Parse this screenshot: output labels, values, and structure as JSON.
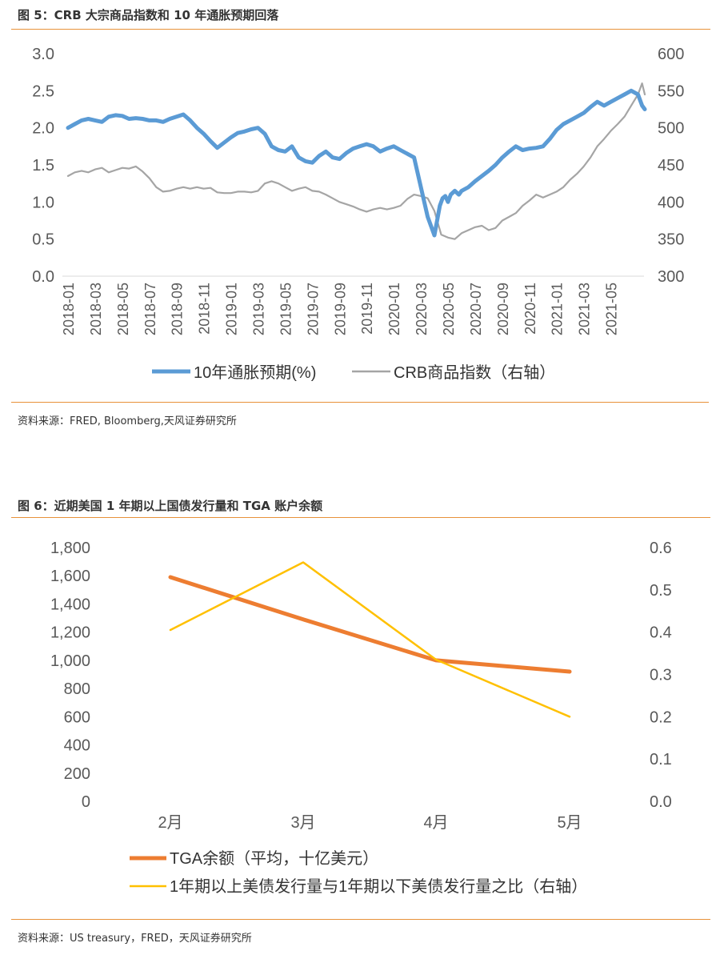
{
  "figure5": {
    "title": "图 5：CRB 大宗商品指数和 10 年通胀预期回落",
    "source": "资料来源：FRED, Bloomberg,天风证券研究所"
  },
  "figure6": {
    "title": "图 6：近期美国 1 年期以上国债发行量和 TGA 账户余额",
    "source": "资料来源：US treasury，FRED，天风证券研究所"
  },
  "colors": {
    "rule": "#e8923a",
    "blue": "#5b9bd5",
    "gray": "#a5a5a5",
    "orange": "#ed7d31",
    "yellow": "#ffc000"
  },
  "chart_data": [
    {
      "type": "line",
      "title": "CRB 大宗商品指数和 10 年通胀预期回落",
      "x_ticks": [
        "2018-01",
        "2018-03",
        "2018-05",
        "2018-07",
        "2018-09",
        "2018-11",
        "2019-01",
        "2019-03",
        "2019-05",
        "2019-07",
        "2019-09",
        "2019-11",
        "2020-01",
        "2020-03",
        "2020-05",
        "2020-07",
        "2020-09",
        "2020-11",
        "2021-01",
        "2021-03",
        "2021-05"
      ],
      "y_left": {
        "lim": [
          0.0,
          3.0
        ],
        "ticks": [
          "3.0",
          "2.5",
          "2.0",
          "1.5",
          "1.0",
          "0.5",
          "0.0"
        ]
      },
      "y_right": {
        "lim": [
          300,
          600
        ],
        "ticks": [
          "600",
          "550",
          "500",
          "450",
          "400",
          "350",
          "300"
        ]
      },
      "x_months": [
        0,
        42.5
      ],
      "series": [
        {
          "name": "10年通胀预期(%)",
          "axis": "left",
          "months": [
            0,
            0.5,
            1,
            1.5,
            2,
            2.5,
            3,
            3.5,
            4,
            4.5,
            5,
            5.5,
            6,
            6.5,
            7,
            7.5,
            8,
            8.5,
            9,
            9.5,
            10,
            10.5,
            11,
            11.5,
            12,
            12.5,
            13,
            13.5,
            14,
            14.5,
            15,
            15.5,
            16,
            16.5,
            17,
            17.5,
            18,
            18.5,
            19,
            19.5,
            20,
            20.5,
            21,
            21.5,
            22,
            22.5,
            23,
            23.5,
            24,
            24.5,
            25,
            25.5,
            26,
            26.5,
            27,
            27.2,
            27.4,
            27.6,
            27.8,
            28,
            28.2,
            28.5,
            28.8,
            29,
            29.5,
            30,
            30.5,
            31,
            31.5,
            32,
            32.5,
            33,
            33.5,
            34,
            34.5,
            35,
            35.5,
            36,
            36.5,
            37,
            37.5,
            38,
            38.5,
            39,
            39.5,
            40,
            40.5,
            41,
            41.5,
            42,
            42.3,
            42.5
          ],
          "values": [
            2.0,
            2.05,
            2.1,
            2.12,
            2.1,
            2.08,
            2.15,
            2.17,
            2.16,
            2.12,
            2.13,
            2.12,
            2.1,
            2.1,
            2.08,
            2.12,
            2.15,
            2.18,
            2.1,
            2.0,
            1.92,
            1.82,
            1.73,
            1.8,
            1.87,
            1.93,
            1.95,
            1.98,
            2.0,
            1.92,
            1.75,
            1.7,
            1.68,
            1.75,
            1.6,
            1.55,
            1.53,
            1.62,
            1.68,
            1.6,
            1.58,
            1.66,
            1.72,
            1.75,
            1.78,
            1.75,
            1.68,
            1.72,
            1.75,
            1.7,
            1.65,
            1.6,
            1.2,
            0.8,
            0.55,
            0.75,
            0.95,
            1.05,
            1.08,
            1.0,
            1.1,
            1.15,
            1.1,
            1.15,
            1.2,
            1.28,
            1.35,
            1.42,
            1.5,
            1.6,
            1.68,
            1.75,
            1.7,
            1.72,
            1.73,
            1.75,
            1.85,
            1.97,
            2.05,
            2.1,
            2.15,
            2.2,
            2.28,
            2.35,
            2.3,
            2.35,
            2.4,
            2.45,
            2.5,
            2.45,
            2.3,
            2.25
          ]
        },
        {
          "name": "CRB商品指数（右轴）",
          "axis": "right",
          "months": [
            0,
            0.5,
            1,
            1.5,
            2,
            2.5,
            3,
            3.5,
            4,
            4.5,
            5,
            5.5,
            6,
            6.5,
            7,
            7.5,
            8,
            8.5,
            9,
            9.5,
            10,
            10.5,
            11,
            11.5,
            12,
            12.5,
            13,
            13.5,
            14,
            14.5,
            15,
            15.5,
            16,
            16.5,
            17,
            17.5,
            18,
            18.5,
            19,
            19.5,
            20,
            20.5,
            21,
            21.5,
            22,
            22.5,
            23,
            23.5,
            24,
            24.5,
            25,
            25.5,
            26,
            26.5,
            27,
            27.5,
            28,
            28.5,
            29,
            29.5,
            30,
            30.5,
            31,
            31.5,
            32,
            32.5,
            33,
            33.5,
            34,
            34.5,
            35,
            35.5,
            36,
            36.5,
            37,
            37.5,
            38,
            38.5,
            39,
            39.5,
            40,
            40.5,
            41,
            41.5,
            42,
            42.3,
            42.5
          ],
          "values": [
            435,
            440,
            442,
            440,
            444,
            446,
            440,
            443,
            446,
            445,
            448,
            441,
            432,
            420,
            414,
            415,
            418,
            420,
            418,
            420,
            418,
            419,
            413,
            412,
            412,
            414,
            414,
            413,
            415,
            425,
            428,
            425,
            420,
            415,
            418,
            420,
            415,
            414,
            410,
            405,
            400,
            397,
            394,
            390,
            387,
            390,
            392,
            390,
            392,
            395,
            404,
            410,
            408,
            405,
            388,
            356,
            352,
            350,
            358,
            362,
            366,
            368,
            362,
            365,
            375,
            380,
            385,
            395,
            402,
            410,
            406,
            410,
            414,
            420,
            430,
            438,
            448,
            460,
            475,
            485,
            496,
            505,
            515,
            530,
            545,
            560,
            545
          ]
        }
      ]
    },
    {
      "type": "line",
      "title": "近期美国 1 年期以上国债发行量和 TGA 账户余额",
      "categories": [
        "2月",
        "3月",
        "4月",
        "5月"
      ],
      "y_left": {
        "lim": [
          0,
          1800
        ],
        "ticks": [
          "1,800",
          "1,600",
          "1,400",
          "1,200",
          "1,000",
          "800",
          "600",
          "400",
          "200",
          "0"
        ]
      },
      "y_right": {
        "lim": [
          0.0,
          0.6
        ],
        "ticks": [
          "0.6",
          "0.5",
          "0.4",
          "0.3",
          "0.2",
          "0.1",
          "0.0"
        ]
      },
      "series": [
        {
          "name": "TGA余额（平均，十亿美元）",
          "axis": "left",
          "values": [
            1590,
            1290,
            1000,
            920
          ]
        },
        {
          "name": "1年期以上美债发行量与1年期以下美债发行量之比（右轴）",
          "axis": "right",
          "values": [
            0.405,
            0.565,
            0.335,
            0.2
          ]
        }
      ]
    }
  ]
}
